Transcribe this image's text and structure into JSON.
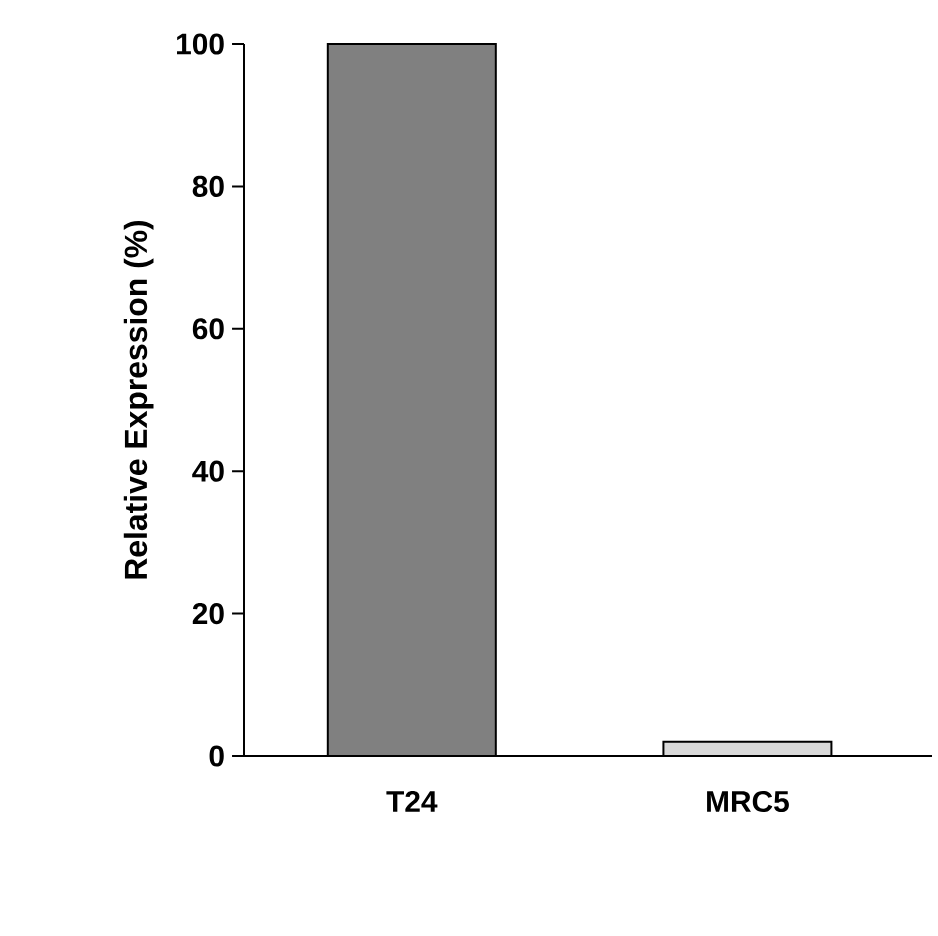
{
  "chart_data": {
    "type": "bar",
    "ylabel": "Relative Expression (%)",
    "categories": [
      "T24",
      "MRC5"
    ],
    "values": [
      100,
      2
    ],
    "colors": [
      "#808080",
      "#d9d9d9"
    ],
    "ylim": [
      0,
      100
    ],
    "yticks": [
      0,
      20,
      40,
      60,
      80,
      100
    ],
    "grid": false
  }
}
